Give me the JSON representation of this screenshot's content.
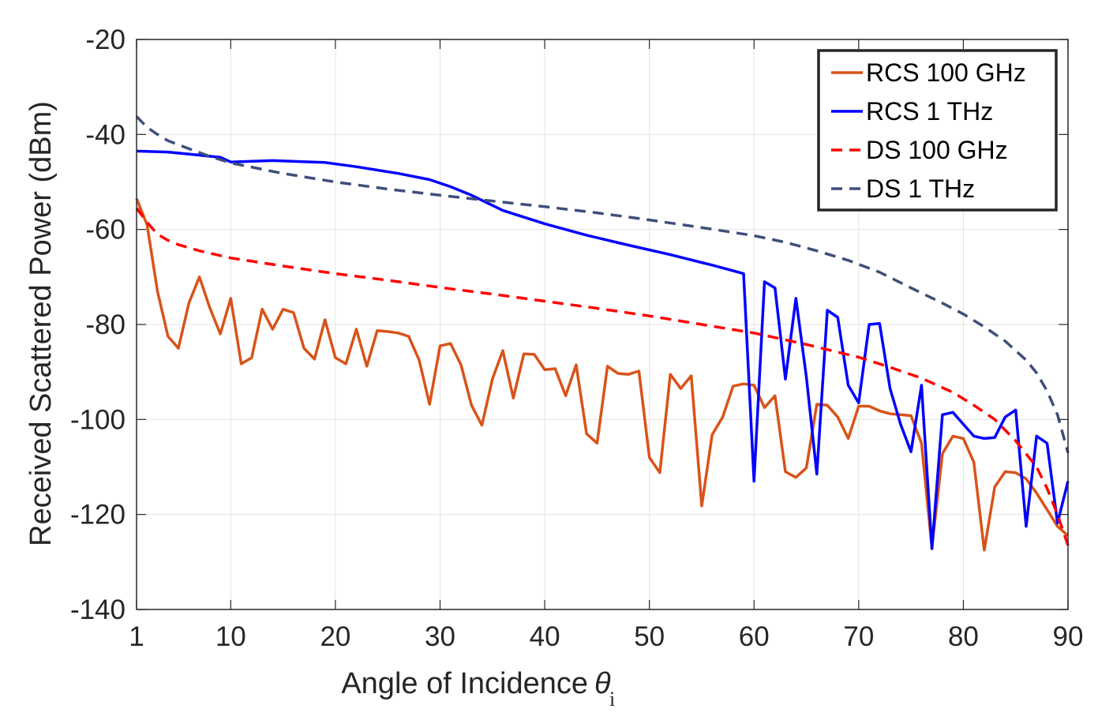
{
  "chart_data": {
    "type": "line",
    "xlabel": "Angle of Incidence",
    "xlabel_symbol": "θ",
    "xlabel_subscript": "i",
    "ylabel": "Received Scattered Power (dBm)",
    "xlim": [
      1,
      90
    ],
    "ylim": [
      -140,
      -20
    ],
    "xticks": [
      1,
      10,
      20,
      30,
      40,
      50,
      60,
      70,
      80,
      90
    ],
    "yticks": [
      -140,
      -120,
      -100,
      -80,
      -60,
      -40,
      -20
    ],
    "xtick_labels": [
      "1",
      "10",
      "20",
      "30",
      "40",
      "50",
      "60",
      "70",
      "80",
      "90"
    ],
    "ytick_labels": [
      "-140",
      "-120",
      "-100",
      "-80",
      "-60",
      "-40",
      "-20"
    ],
    "grid": true,
    "legend_position": "top-right",
    "series": [
      {
        "name": "RCS 100 GHz",
        "color": "#d95319",
        "dash": "solid",
        "x": [
          1,
          2,
          3,
          4,
          5,
          6,
          7,
          8,
          9,
          10,
          11,
          12,
          13,
          14,
          15,
          16,
          17,
          18,
          19,
          20,
          21,
          22,
          23,
          24,
          25,
          26,
          27,
          28,
          29,
          30,
          31,
          32,
          33,
          34,
          35,
          36,
          37,
          38,
          39,
          40,
          41,
          42,
          43,
          44,
          45,
          46,
          47,
          48,
          49,
          50,
          51,
          52,
          53,
          54,
          55,
          56,
          57,
          58,
          59,
          60,
          61,
          62,
          63,
          64,
          65,
          66,
          67,
          68,
          69,
          70,
          71,
          72,
          73,
          74,
          75,
          76,
          77,
          78,
          79,
          80,
          81,
          82,
          83,
          84,
          85,
          86,
          87,
          88,
          89,
          90
        ],
        "values": [
          -53.5,
          -59,
          -73,
          -82.5,
          -85,
          -75.5,
          -70,
          -76.5,
          -82,
          -74.5,
          -88.3,
          -87,
          -76.8,
          -81,
          -76.8,
          -77.5,
          -85,
          -87.3,
          -79,
          -87,
          -88.3,
          -81,
          -88.8,
          -81.3,
          -81.5,
          -81.8,
          -82.5,
          -87.5,
          -96.8,
          -84.5,
          -84,
          -88.5,
          -97,
          -101.2,
          -91.5,
          -85.5,
          -95.5,
          -86.2,
          -86.3,
          -89.5,
          -89.3,
          -95,
          -88.5,
          -103,
          -105,
          -88.8,
          -90.3,
          -90.5,
          -89.8,
          -108,
          -111.2,
          -90.5,
          -93.5,
          -90.8,
          -118.2,
          -103.2,
          -99.5,
          -93,
          -92.5,
          -92.8,
          -97.5,
          -95,
          -111,
          -112.2,
          -110.2,
          -96.8,
          -97,
          -99.5,
          -104,
          -97.2,
          -97.2,
          -98.2,
          -98.8,
          -99,
          -99.2,
          -105,
          -127,
          -107.2,
          -103.5,
          -104,
          -109,
          -127.5,
          -114.2,
          -111,
          -111.2,
          -112.5,
          -115.5,
          -119,
          -122.5,
          -124.5
        ]
      },
      {
        "name": "RCS 1 THz",
        "color": "#0000ff",
        "dash": "solid",
        "x": [
          1,
          4,
          9,
          10,
          14,
          19,
          22,
          26,
          29,
          31,
          33,
          36,
          40,
          44,
          48,
          52,
          56,
          59,
          60,
          61,
          62,
          63,
          64,
          65,
          66,
          67,
          68,
          69,
          70,
          71,
          72,
          73,
          74,
          75,
          76,
          77,
          78,
          79,
          80,
          81,
          82,
          83,
          84,
          85,
          86,
          87,
          88,
          89,
          90
        ],
        "values": [
          -43.5,
          -43.7,
          -44.8,
          -45.8,
          -45.5,
          -45.9,
          -46.8,
          -48.2,
          -49.5,
          -51,
          -52.8,
          -56,
          -58.8,
          -61.2,
          -63.3,
          -65.3,
          -67.5,
          -69.3,
          -113,
          -71,
          -72.3,
          -91.5,
          -74.5,
          -91,
          -111.5,
          -77,
          -78.5,
          -92.8,
          -96.5,
          -80,
          -79.8,
          -93.5,
          -101,
          -106.8,
          -92.8,
          -127.2,
          -99,
          -98.5,
          -101,
          -103.5,
          -104,
          -103.8,
          -99.5,
          -98,
          -122.5,
          -103.5,
          -105,
          -121.8,
          -113
        ]
      },
      {
        "name": "DS 100 GHz",
        "color": "#ff0000",
        "dash": "dashed",
        "x": [
          1,
          2,
          3,
          4,
          5,
          7,
          10,
          15,
          20,
          25,
          30,
          35,
          40,
          45,
          50,
          55,
          60,
          65,
          70,
          73,
          76,
          79,
          81,
          83,
          85,
          87,
          88,
          89,
          90
        ],
        "values": [
          -55.5,
          -58.5,
          -61,
          -62.3,
          -63.2,
          -64.5,
          -66,
          -67.7,
          -69.3,
          -70.7,
          -72.2,
          -73.6,
          -75.1,
          -76.6,
          -78.2,
          -80,
          -81.8,
          -84.2,
          -86.9,
          -89,
          -91.3,
          -94.3,
          -97,
          -100,
          -104.5,
          -110,
          -114.5,
          -120,
          -126.5
        ]
      },
      {
        "name": "DS 1 THz",
        "color": "#3f4f7a",
        "dash": "dashed",
        "x": [
          1,
          2,
          3,
          4,
          6,
          8,
          10,
          15,
          20,
          25,
          30,
          35,
          40,
          45,
          50,
          55,
          60,
          63,
          66,
          69,
          72,
          75,
          78,
          80,
          82,
          84,
          86,
          87,
          88,
          89,
          90
        ],
        "values": [
          -36.2,
          -38.5,
          -40,
          -41.3,
          -43,
          -44.6,
          -46,
          -48.2,
          -50,
          -51.5,
          -52.8,
          -54,
          -55.2,
          -56.5,
          -58,
          -59.6,
          -61.3,
          -62.7,
          -64.5,
          -66.5,
          -69,
          -72.3,
          -75.5,
          -77.8,
          -80.5,
          -83.5,
          -87.5,
          -90.2,
          -94,
          -99,
          -107
        ]
      }
    ]
  }
}
